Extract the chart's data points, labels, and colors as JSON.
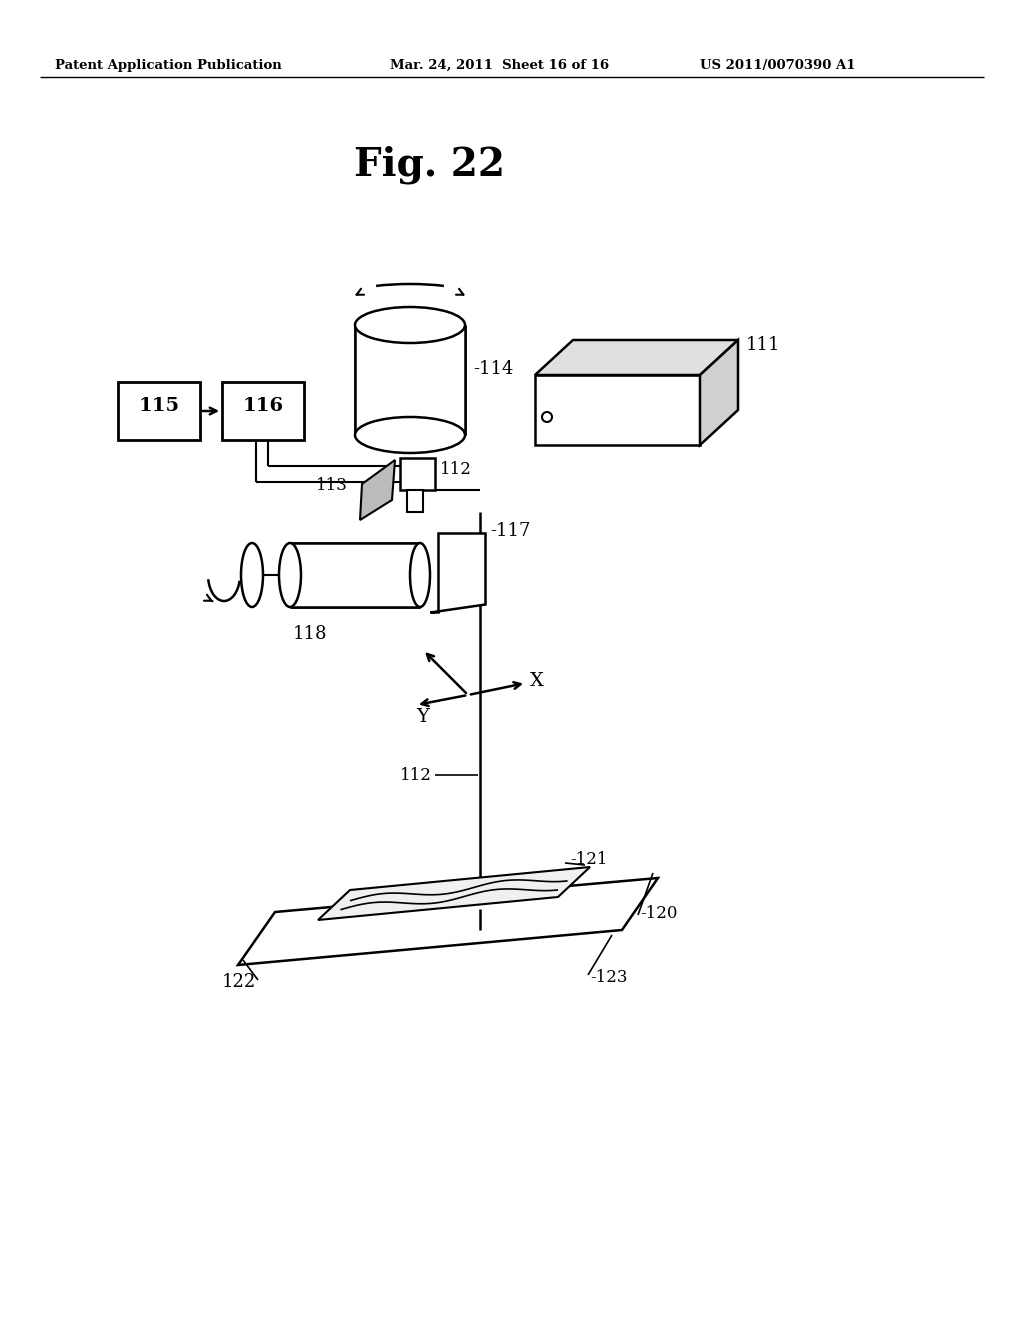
{
  "header_left": "Patent Application Publication",
  "header_mid": "Mar. 24, 2011  Sheet 16 of 16",
  "header_right": "US 2011/0070390 A1",
  "title": "Fig. 22",
  "bg_color": "#ffffff",
  "lc": "#000000"
}
